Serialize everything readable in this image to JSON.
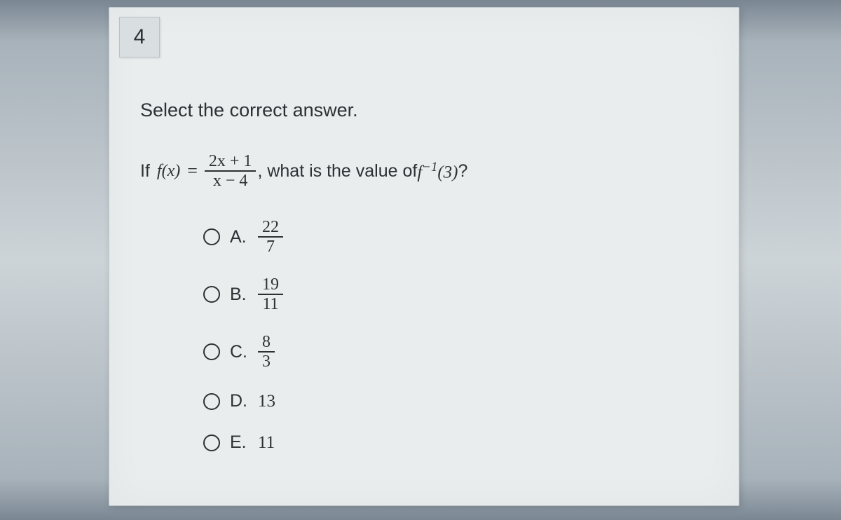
{
  "question_number": "4",
  "prompt": "Select the correct answer.",
  "question": {
    "lead": "If",
    "fx": "f(x)",
    "equals": "=",
    "frac_num": "2x + 1",
    "frac_den": "x − 4",
    "mid": ", what is the value of ",
    "inverse": "f",
    "inverse_sup": "−1",
    "inverse_arg": "(3)",
    "qmark": "?"
  },
  "options": [
    {
      "label": "A.",
      "type": "frac",
      "num": "22",
      "den": "7"
    },
    {
      "label": "B.",
      "type": "frac",
      "num": "19",
      "den": "11"
    },
    {
      "label": "C.",
      "type": "frac",
      "num": "8",
      "den": "3"
    },
    {
      "label": "D.",
      "type": "plain",
      "value": "13"
    },
    {
      "label": "E.",
      "type": "plain",
      "value": "11"
    }
  ],
  "colors": {
    "page_bg": "#e9edee",
    "text": "#2c3135",
    "qnum_bg": "#d9dee1",
    "border": "#bfc7cc"
  }
}
